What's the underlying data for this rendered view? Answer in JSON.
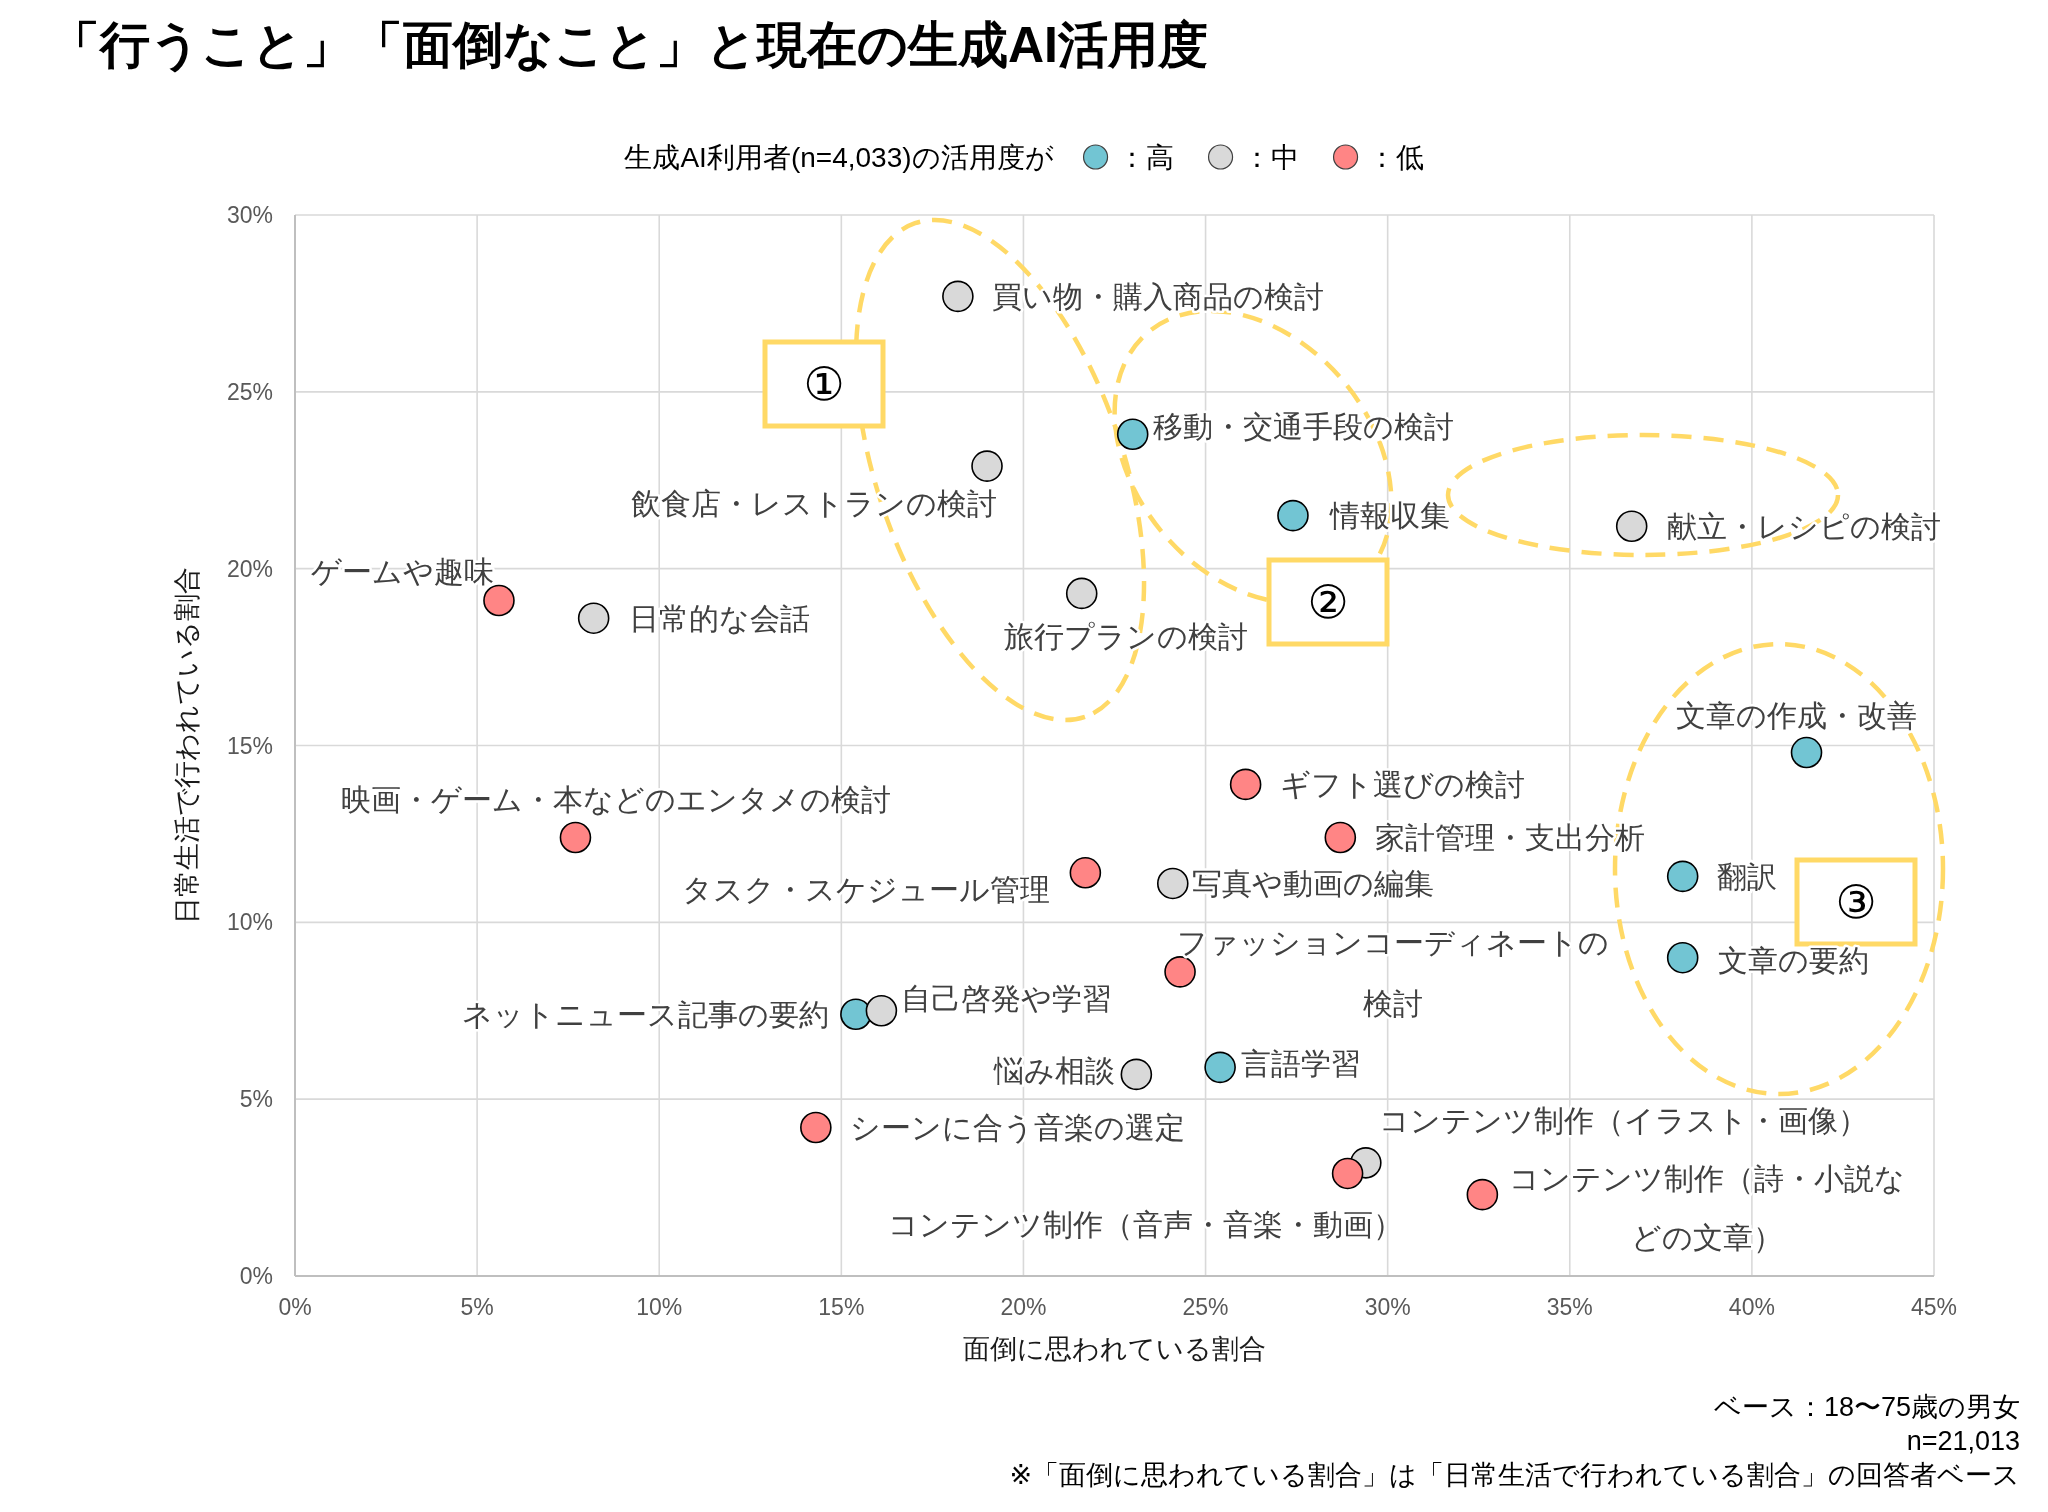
{
  "chart_data": {
    "type": "scatter",
    "title": "「行うこと」「面倒なこと」と現在の生成AI活用度",
    "xlabel": "面倒に思われている割合",
    "ylabel": "日常生活で行われている割合",
    "legend_title": "生成AI利用者(n=4,033)の活用度が",
    "legend": "top",
    "grid": true,
    "marker": "circle",
    "xlim": [
      0,
      45
    ],
    "ylim": [
      0,
      30
    ],
    "xticks": [
      {
        "value": 0,
        "label": "0%"
      },
      {
        "value": 5,
        "label": "5%"
      },
      {
        "value": 10,
        "label": "10%"
      },
      {
        "value": 15,
        "label": "15%"
      },
      {
        "value": 20,
        "label": "20%"
      },
      {
        "value": 25,
        "label": "25%"
      },
      {
        "value": 30,
        "label": "30%"
      },
      {
        "value": 35,
        "label": "35%"
      },
      {
        "value": 40,
        "label": "40%"
      },
      {
        "value": 45,
        "label": "45%"
      }
    ],
    "yticks": [
      {
        "value": 0,
        "label": "0%"
      },
      {
        "value": 5,
        "label": "5%"
      },
      {
        "value": 10,
        "label": "10%"
      },
      {
        "value": 15,
        "label": "15%"
      },
      {
        "value": 20,
        "label": "20%"
      },
      {
        "value": 25,
        "label": "25%"
      },
      {
        "value": 30,
        "label": "30%"
      }
    ],
    "series": [
      {
        "name": "：高",
        "color": "#72c5d3",
        "x": [
          23.0,
          27.4,
          41.5,
          38.1,
          38.1,
          15.4,
          25.4
        ],
        "values": [
          23.8,
          21.5,
          14.8,
          11.3,
          9.0,
          7.4,
          5.9
        ]
      },
      {
        "name": "：中",
        "color": "#d9d9d9",
        "x": [
          18.2,
          19.0,
          36.7,
          21.6,
          8.2,
          24.1,
          16.1,
          23.1,
          29.4
        ],
        "values": [
          27.7,
          22.9,
          21.2,
          19.3,
          18.6,
          11.1,
          7.5,
          5.7,
          3.2
        ]
      },
      {
        "name": "：低",
        "color": "#ff8585",
        "x": [
          5.6,
          7.7,
          26.1,
          28.7,
          21.7,
          24.3,
          14.3,
          28.9,
          32.6
        ],
        "values": [
          19.1,
          12.4,
          13.9,
          12.4,
          11.4,
          8.6,
          4.2,
          2.9,
          2.3
        ]
      }
    ],
    "annotations": [
      {
        "text": "ゲームや趣味",
        "x": 5.6,
        "y": 19.1
      },
      {
        "text": "日常的な会話",
        "x": 8.2,
        "y": 18.6
      },
      {
        "text": "映画・ゲーム・本などのエンタメの検討",
        "x": 7.7,
        "y": 12.4
      },
      {
        "text": "買い物・購入商品の検討",
        "x": 18.2,
        "y": 27.7
      },
      {
        "text": "飲食店・レストランの検討",
        "x": 19.0,
        "y": 22.9
      },
      {
        "text": "移動・交通手段の検討",
        "x": 23.0,
        "y": 23.8
      },
      {
        "text": "情報収集",
        "x": 27.4,
        "y": 21.5
      },
      {
        "text": "献立・レシピの検討",
        "x": 36.7,
        "y": 21.2
      },
      {
        "text": "旅行プランの検討",
        "x": 21.6,
        "y": 19.3
      },
      {
        "text": "文章の作成・改善",
        "x": 41.5,
        "y": 14.8
      },
      {
        "text": "ギフト選びの検討",
        "x": 26.1,
        "y": 13.9
      },
      {
        "text": "家計管理・支出分析",
        "x": 28.7,
        "y": 12.4
      },
      {
        "text": "翻訳",
        "x": 38.1,
        "y": 11.3
      },
      {
        "text": "タスク・スケジュール管理",
        "x": 21.7,
        "y": 11.4
      },
      {
        "text": "写真や動画の編集",
        "x": 24.1,
        "y": 11.1
      },
      {
        "text": "文章の要約",
        "x": 38.1,
        "y": 9.0
      },
      {
        "text": "ファッションコーディネートの検討",
        "x": 24.3,
        "y": 8.6
      },
      {
        "text": "自己啓発や学習",
        "x": 16.1,
        "y": 7.5
      },
      {
        "text": "ネットニュース記事の要約",
        "x": 15.4,
        "y": 7.4
      },
      {
        "text": "悩み相談",
        "x": 23.1,
        "y": 5.7
      },
      {
        "text": "言語学習",
        "x": 25.4,
        "y": 5.9
      },
      {
        "text": "シーンに合う音楽の選定",
        "x": 14.3,
        "y": 4.2
      },
      {
        "text": "コンテンツ制作（イラスト・画像）",
        "x": 29.4,
        "y": 3.2
      },
      {
        "text": "コンテンツ制作（音声・音楽・動画）",
        "x": 28.9,
        "y": 2.9
      },
      {
        "text": "コンテンツ制作（詩・小説などの文章）",
        "x": 32.6,
        "y": 2.3
      },
      "①",
      "②",
      "③",
      "ベース：18〜75歳の男女",
      "n=21,013",
      "※「面倒に思われている割合」は「日常生活で行われている割合」の回答者ベース"
    ]
  }
}
